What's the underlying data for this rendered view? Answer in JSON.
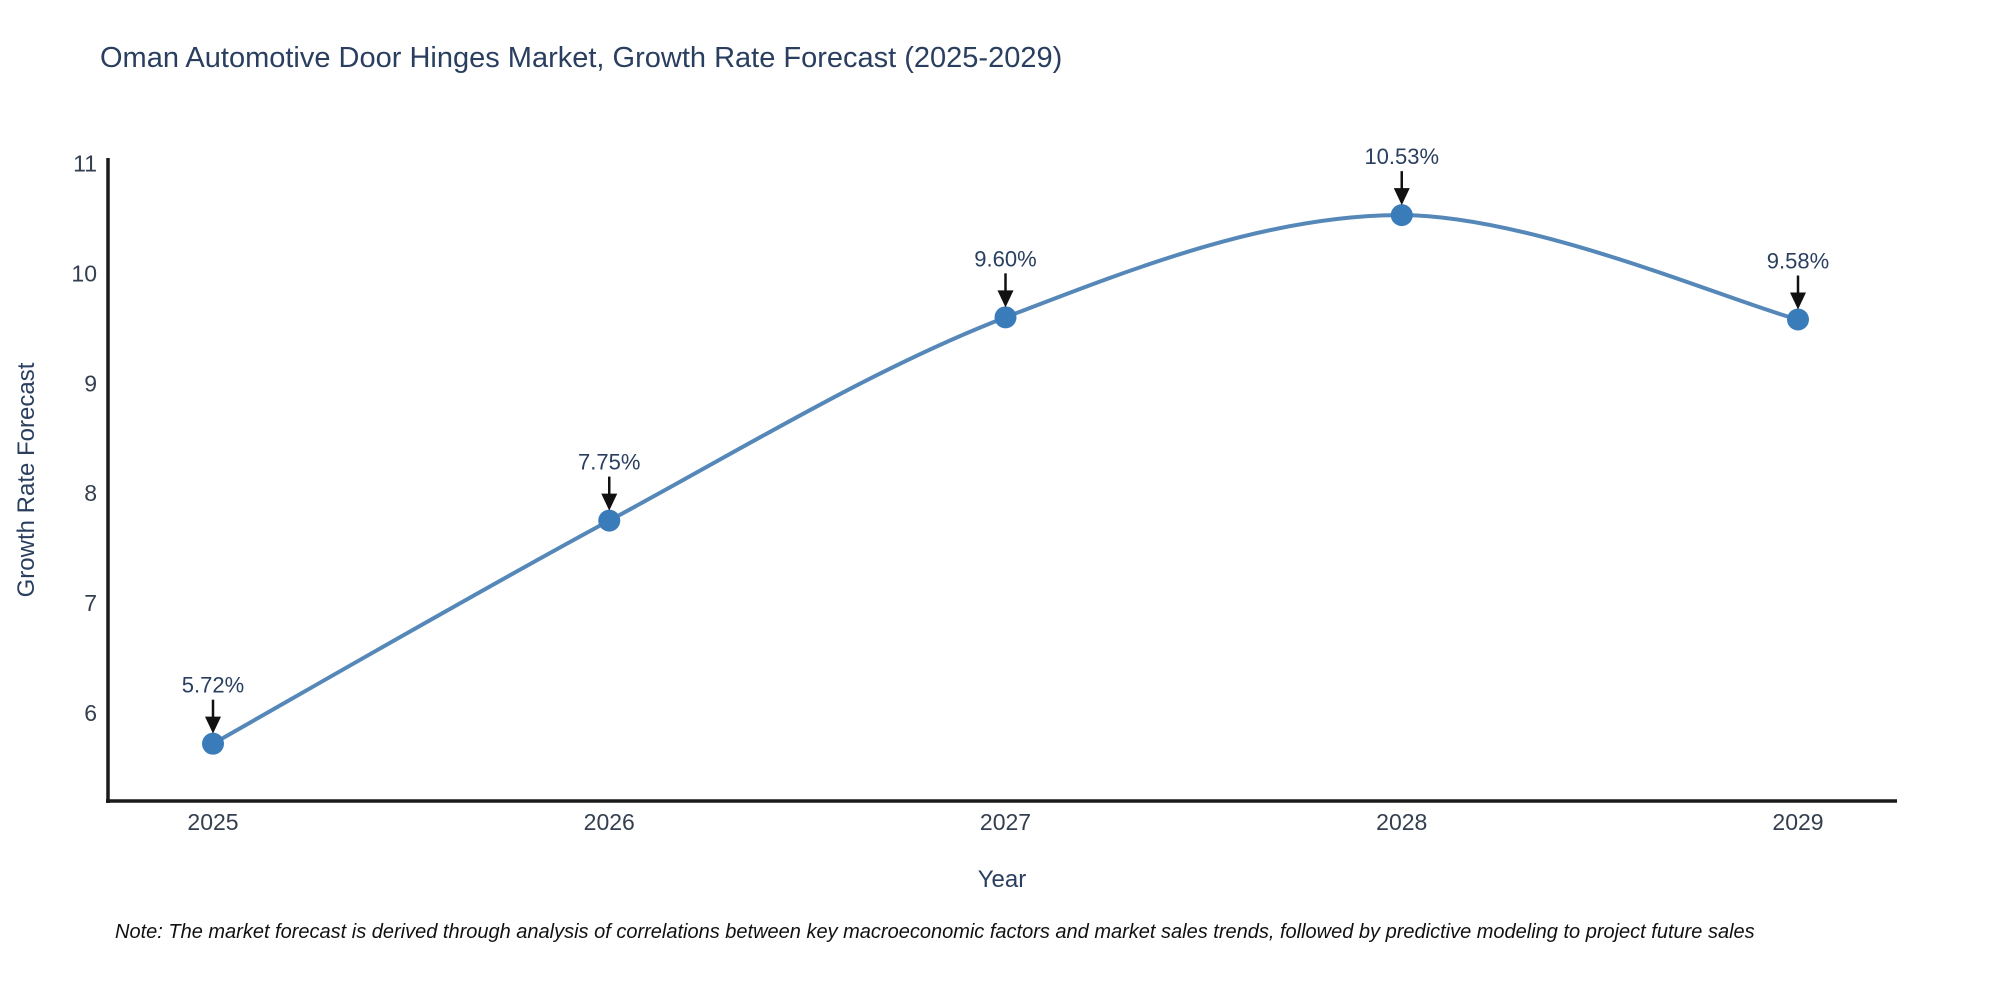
{
  "title": "Oman Automotive Door Hinges Market, Growth Rate Forecast (2025-2029)",
  "note": "Note: The market forecast is derived through analysis of correlations between key macroeconomic factors and market sales trends, followed by predictive modeling to project future sales",
  "chart_data": {
    "type": "line",
    "title": "Oman Automotive Door Hinges Market, Growth Rate Forecast (2025-2029)",
    "x": [
      "2025",
      "2026",
      "2027",
      "2028",
      "2029"
    ],
    "series": [
      {
        "name": "Growth Rate Forecast",
        "values": [
          5.72,
          7.75,
          9.6,
          10.53,
          9.58
        ],
        "point_labels": [
          "5.72%",
          "7.75%",
          "9.60%",
          "10.53%",
          "9.58%"
        ]
      }
    ],
    "xlabel": "Year",
    "ylabel": "Growth Rate Forecast",
    "yticks": [
      6,
      7,
      8,
      9,
      10,
      11
    ],
    "ylim": [
      5.18,
      11.05
    ],
    "line_shape": "spline",
    "grid": false,
    "legend": false,
    "annotations_style": "value-label-with-down-arrow",
    "colors": {
      "line": "#5588b8",
      "marker": "#3a7bba",
      "arrow": "#111111",
      "axis": "#1a1a1a",
      "tick_text": "#333f4f",
      "label_text": "#2a3f5f",
      "title_text": "#2a3f5f",
      "note_text": "#111111"
    }
  }
}
